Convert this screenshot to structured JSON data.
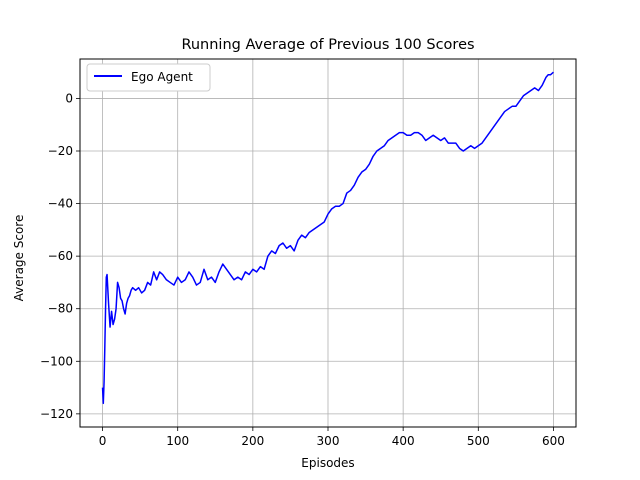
{
  "chart_data": {
    "type": "line",
    "title": "Running Average of Previous 100 Scores",
    "xlabel": "Episodes",
    "ylabel": "Average Score",
    "xlim": [
      -30,
      630
    ],
    "ylim": [
      -125,
      15
    ],
    "xticks": [
      0,
      100,
      200,
      300,
      400,
      500,
      600
    ],
    "yticks": [
      -120,
      -100,
      -80,
      -60,
      -40,
      -20,
      0
    ],
    "grid": true,
    "legend_position": "top-left",
    "series": [
      {
        "name": "Ego Agent",
        "color": "#0000ff",
        "x": [
          0,
          1,
          2,
          3,
          4,
          5,
          6,
          8,
          10,
          12,
          14,
          16,
          18,
          20,
          22,
          24,
          26,
          28,
          30,
          32,
          34,
          36,
          38,
          40,
          44,
          48,
          52,
          56,
          60,
          64,
          68,
          72,
          76,
          80,
          85,
          90,
          95,
          100,
          105,
          110,
          115,
          120,
          125,
          130,
          135,
          140,
          145,
          150,
          155,
          160,
          165,
          170,
          175,
          180,
          185,
          190,
          195,
          200,
          205,
          210,
          215,
          220,
          225,
          230,
          235,
          240,
          245,
          250,
          255,
          260,
          265,
          270,
          275,
          280,
          285,
          290,
          295,
          300,
          305,
          310,
          315,
          320,
          325,
          330,
          335,
          340,
          345,
          350,
          355,
          360,
          365,
          370,
          375,
          380,
          385,
          390,
          395,
          400,
          405,
          410,
          415,
          420,
          425,
          430,
          435,
          440,
          445,
          450,
          455,
          460,
          465,
          470,
          475,
          480,
          485,
          490,
          495,
          500,
          505,
          510,
          515,
          520,
          525,
          530,
          535,
          540,
          545,
          550,
          555,
          560,
          565,
          570,
          575,
          580,
          585,
          590,
          593,
          596,
          600
        ],
        "y": [
          -110,
          -116,
          -108,
          -95,
          -80,
          -68,
          -67,
          -78,
          -87,
          -81,
          -86,
          -84,
          -80,
          -70,
          -72,
          -76,
          -77,
          -80,
          -82,
          -78,
          -76,
          -75,
          -73,
          -72,
          -73,
          -72,
          -74,
          -73,
          -70,
          -71,
          -66,
          -69,
          -66,
          -67,
          -69,
          -70,
          -71,
          -68,
          -70,
          -69,
          -66,
          -68,
          -71,
          -70,
          -65,
          -69,
          -68,
          -70,
          -66,
          -63,
          -65,
          -67,
          -69,
          -68,
          -69,
          -66,
          -67,
          -65,
          -66,
          -64,
          -65,
          -60,
          -58,
          -59,
          -56,
          -55,
          -57,
          -56,
          -58,
          -54,
          -52,
          -53,
          -51,
          -50,
          -49,
          -48,
          -47,
          -44,
          -42,
          -41,
          -41,
          -40,
          -36,
          -35,
          -33,
          -30,
          -28,
          -27,
          -25,
          -22,
          -20,
          -19,
          -18,
          -16,
          -15,
          -14,
          -13,
          -13,
          -14,
          -14,
          -13,
          -13,
          -14,
          -16,
          -15,
          -14,
          -15,
          -16,
          -15,
          -17,
          -17,
          -17,
          -19,
          -20,
          -19,
          -18,
          -19,
          -18,
          -17,
          -15,
          -13,
          -11,
          -9,
          -7,
          -5,
          -4,
          -3,
          -3,
          -1,
          1,
          2,
          3,
          4,
          3,
          5,
          8,
          9,
          9,
          10
        ]
      }
    ]
  }
}
